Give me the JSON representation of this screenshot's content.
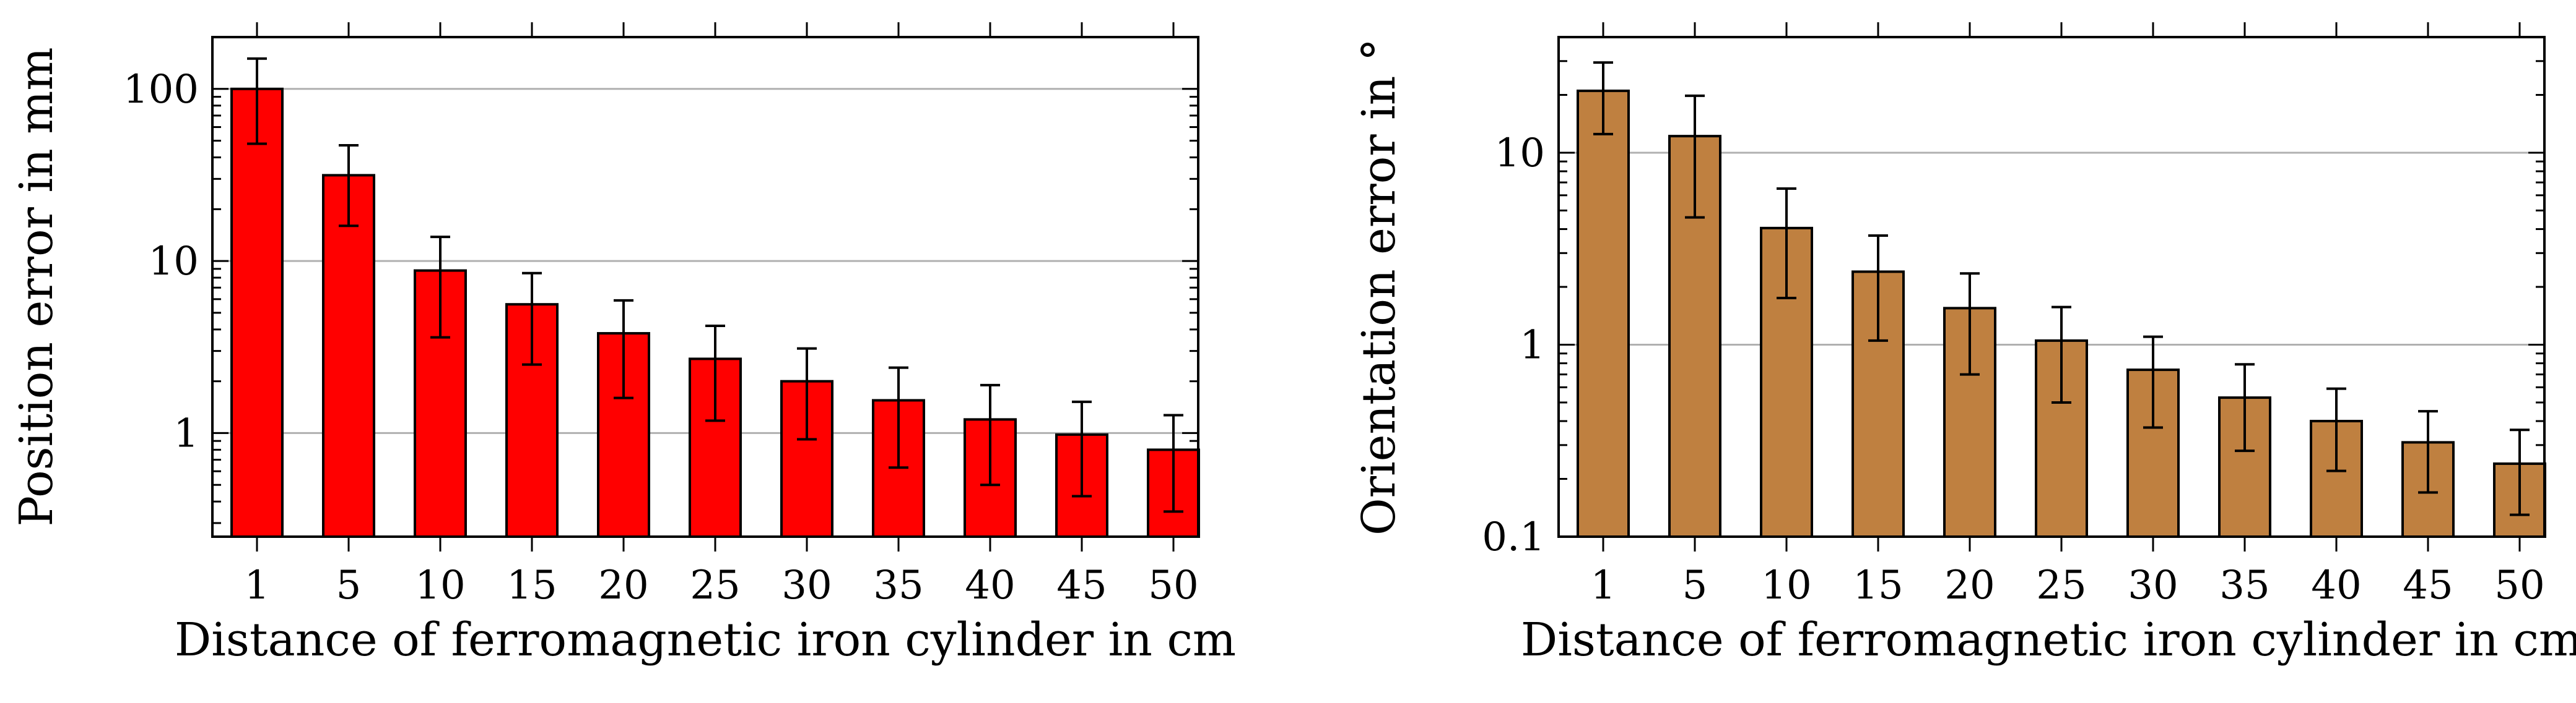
{
  "chart_data": [
    {
      "type": "bar",
      "categories": [
        "1",
        "5",
        "10",
        "15",
        "20",
        "25",
        "30",
        "35",
        "40",
        "45",
        "50"
      ],
      "values": [
        100,
        31.5,
        8.8,
        5.6,
        3.8,
        2.7,
        2.0,
        1.55,
        1.2,
        0.98,
        0.8
      ],
      "error_low": [
        48,
        16,
        3.6,
        2.5,
        1.6,
        1.18,
        0.92,
        0.63,
        0.5,
        0.43,
        0.35
      ],
      "error_high": [
        150,
        47,
        13.8,
        8.5,
        5.9,
        4.2,
        3.1,
        2.4,
        1.9,
        1.52,
        1.27
      ],
      "yscale": "log",
      "ylim": [
        0.25,
        200
      ],
      "yticks": [
        1,
        10,
        100
      ],
      "ytick_labels": [
        "1",
        "10",
        "100"
      ],
      "xlabel": "Distance of ferromagnetic iron cylinder in cm",
      "ylabel": "Position error in mm",
      "color": "#ff0000",
      "grid": "y-major"
    },
    {
      "type": "bar",
      "categories": [
        "1",
        "5",
        "10",
        "15",
        "20",
        "25",
        "30",
        "35",
        "40",
        "45",
        "50"
      ],
      "values": [
        21,
        12.2,
        4.05,
        2.4,
        1.55,
        1.05,
        0.74,
        0.53,
        0.4,
        0.31,
        0.24
      ],
      "error_low": [
        12.5,
        4.6,
        1.75,
        1.05,
        0.7,
        0.5,
        0.37,
        0.28,
        0.22,
        0.17,
        0.13
      ],
      "error_high": [
        29.5,
        19.8,
        6.5,
        3.7,
        2.35,
        1.57,
        1.1,
        0.79,
        0.59,
        0.45,
        0.36
      ],
      "yscale": "log",
      "ylim": [
        0.1,
        40
      ],
      "yticks": [
        0.1,
        1,
        10
      ],
      "ytick_labels": [
        "0.1",
        "1",
        "10"
      ],
      "xlabel": "Distance of ferromagnetic iron cylinder in cm",
      "ylabel": "Orientation error in °",
      "color": "#bf8040",
      "grid": "y-major"
    }
  ]
}
